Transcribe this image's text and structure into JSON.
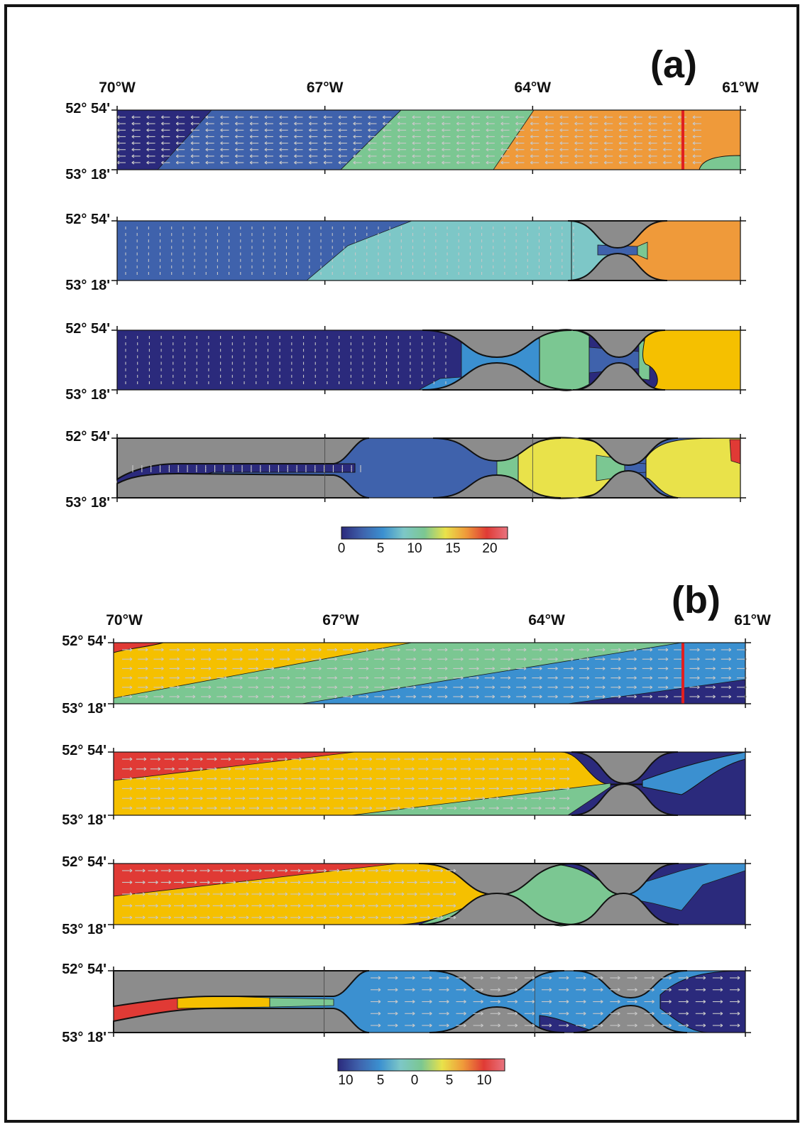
{
  "panels": [
    {
      "letter": "(a)",
      "lon_labels": [
        "70°W",
        "67°W",
        "64°W",
        "61°W"
      ],
      "lat_labels": [
        "52° 54'",
        "53° 18'"
      ],
      "colorbar_ticks": [
        "0",
        "5",
        "10",
        "15",
        "20"
      ]
    },
    {
      "letter": "(b)",
      "lon_labels": [
        "70°W",
        "67°W",
        "64°W",
        "61°W"
      ],
      "lat_labels": [
        "52° 54'",
        "53° 18'"
      ],
      "colorbar_ticks": [
        "10",
        "5",
        "0",
        "5",
        "10"
      ]
    }
  ],
  "colors": {
    "land": "#8c8c8c",
    "section_marker": "#e02020",
    "vector": "#c8c8c8",
    "colormap": [
      "#2b2a7c",
      "#3f62ac",
      "#3b90d0",
      "#7dc7c7",
      "#7bc792",
      "#e9e24a",
      "#f5c000",
      "#ef9a3a",
      "#e03a35"
    ]
  }
}
